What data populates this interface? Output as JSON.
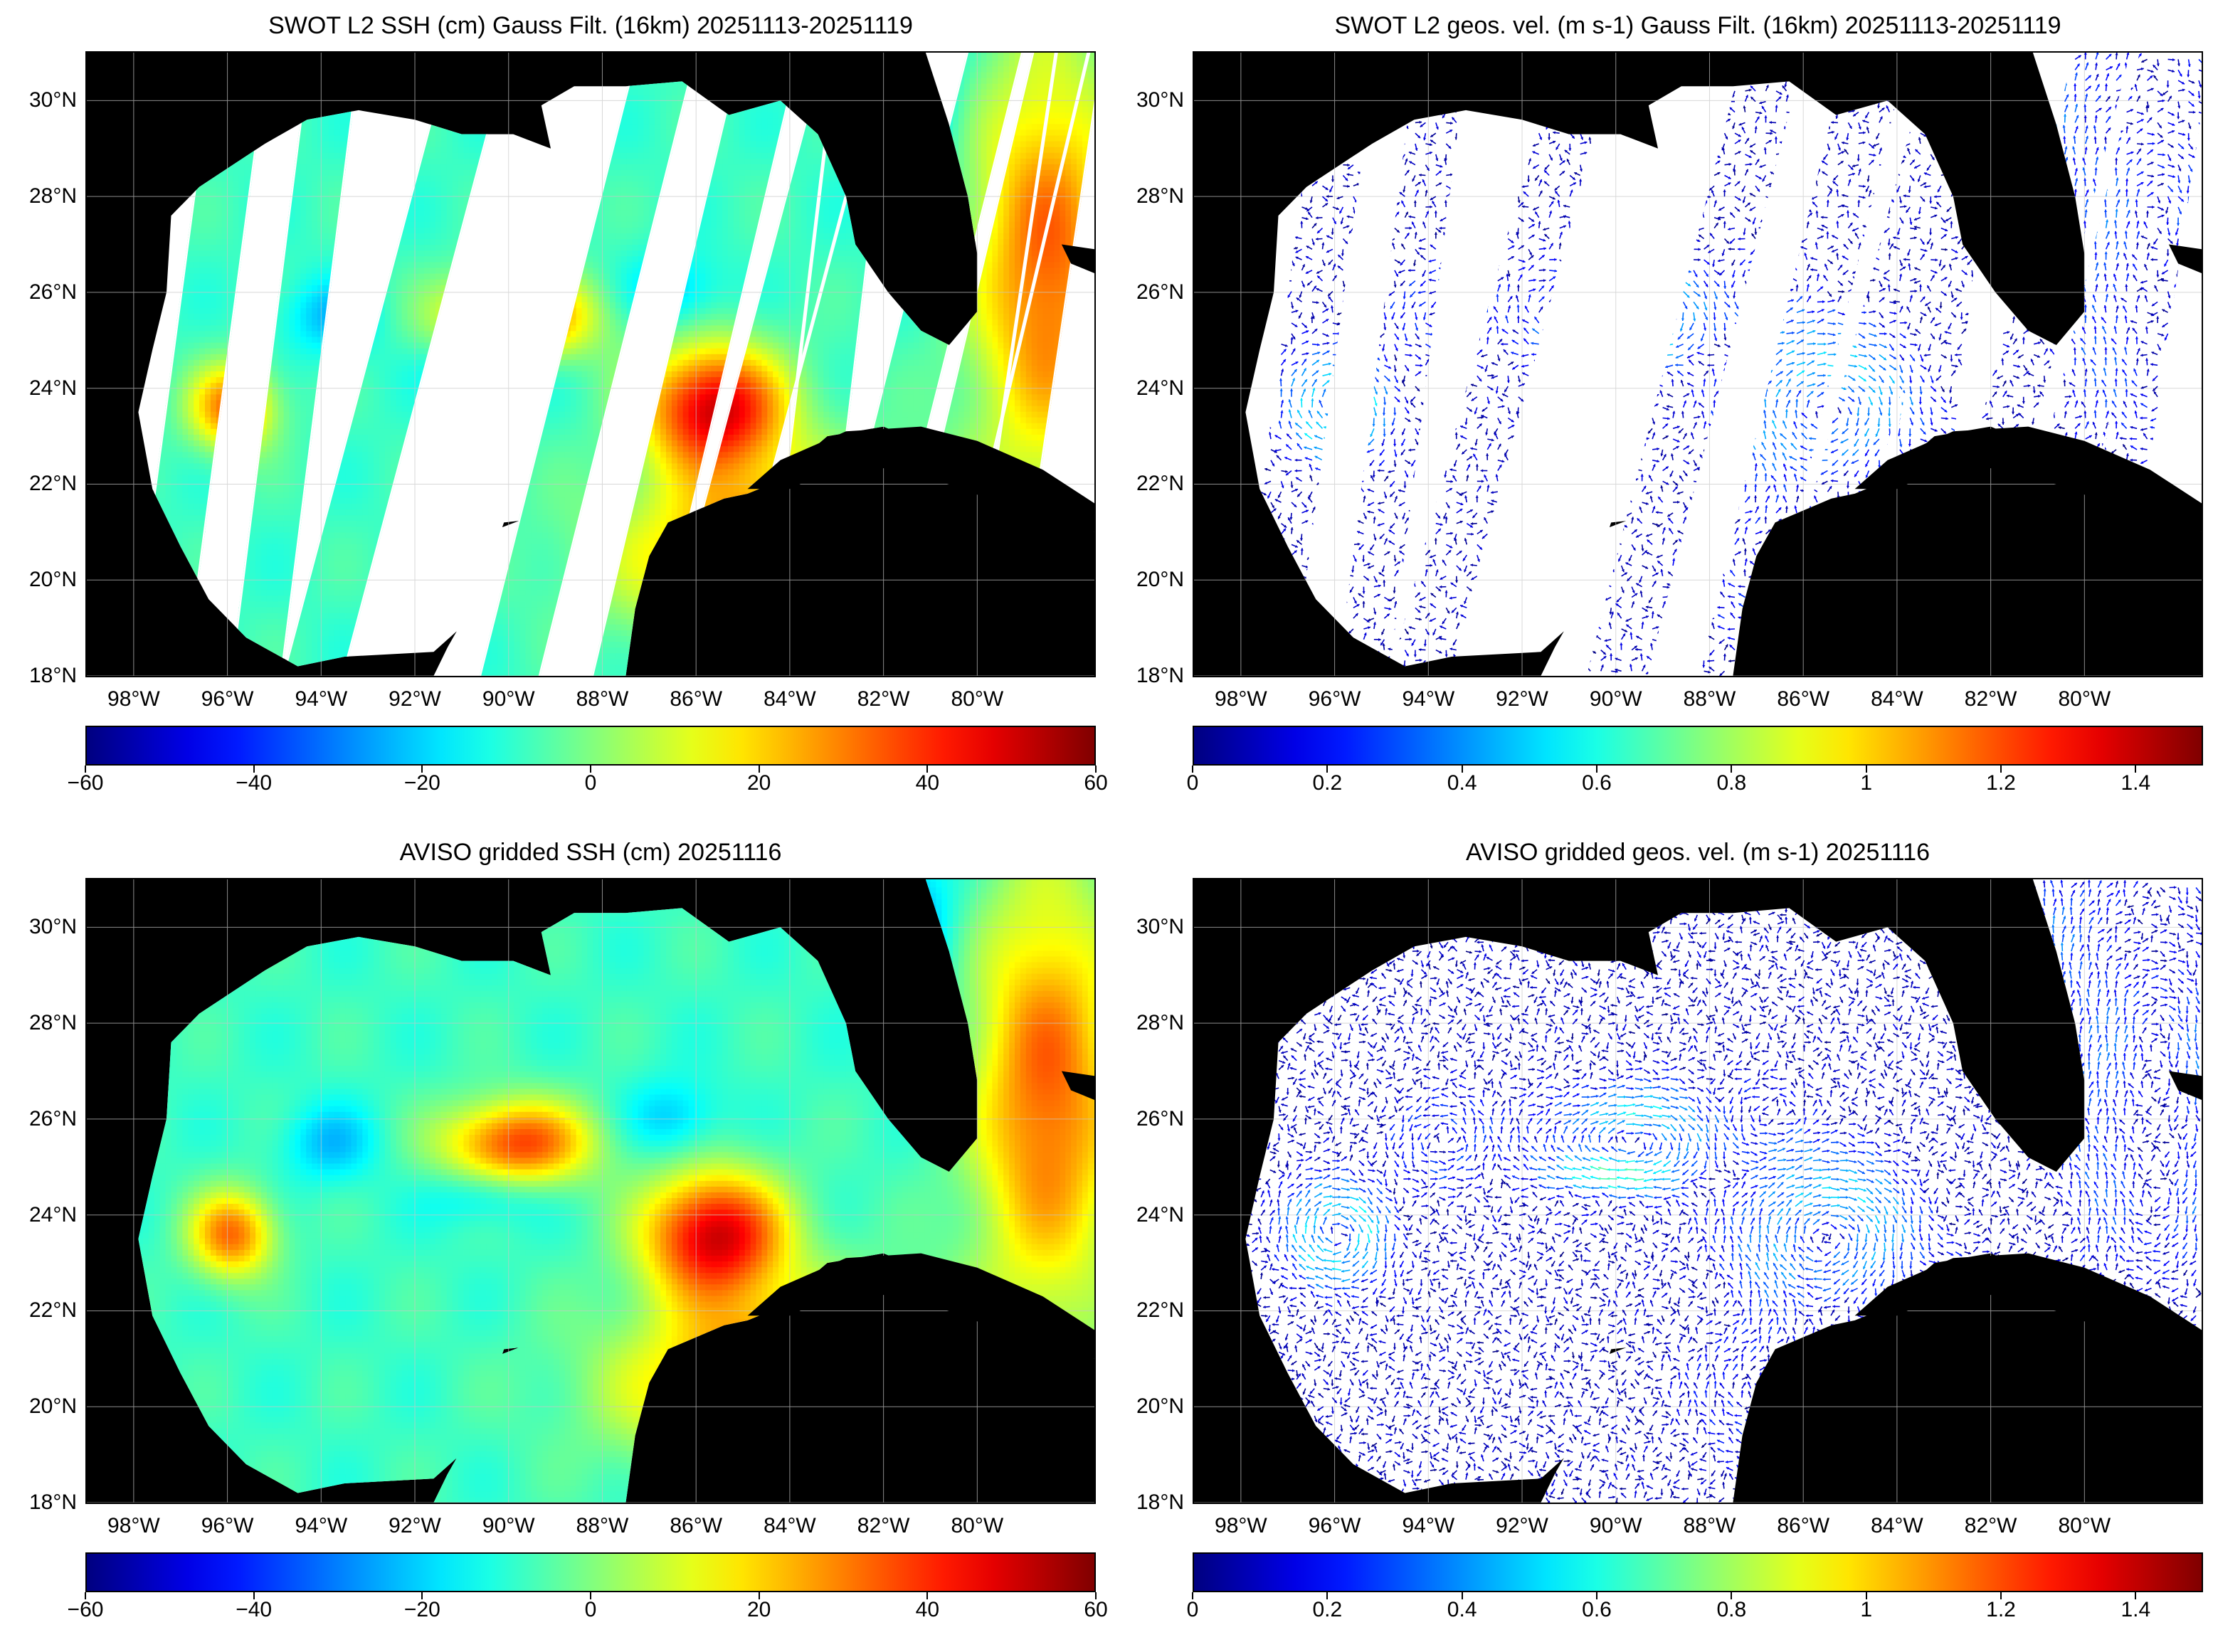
{
  "panels": [
    {
      "id": "swot-ssh",
      "title": "SWOT L2 SSH (cm) Gauss Filt. (16km) 20251113-20251119",
      "kind": "ssh-swaths",
      "colorbar": {
        "ticks": [
          "−60",
          "−40",
          "−20",
          "0",
          "20",
          "40",
          "60"
        ],
        "range": [
          -60,
          60
        ],
        "colormap": "jet"
      }
    },
    {
      "id": "swot-vel",
      "title": "SWOT L2 geos. vel. (m s-1) Gauss Filt. (16km) 20251113-20251119",
      "kind": "vel-swaths",
      "colorbar": {
        "ticks": [
          "0",
          "0.2",
          "0.4",
          "0.6",
          "0.8",
          "1",
          "1.2",
          "1.4"
        ],
        "range": [
          0,
          1.5
        ],
        "colormap": "jet"
      }
    },
    {
      "id": "aviso-ssh",
      "title": "AVISO gridded SSH (cm) 20251116",
      "kind": "ssh-grid",
      "colorbar": {
        "ticks": [
          "−60",
          "−40",
          "−20",
          "0",
          "20",
          "40",
          "60"
        ],
        "range": [
          -60,
          60
        ],
        "colormap": "jet"
      }
    },
    {
      "id": "aviso-vel",
      "title": "AVISO gridded geos. vel. (m s-1)  20251116",
      "kind": "vel-grid",
      "colorbar": {
        "ticks": [
          "0",
          "0.2",
          "0.4",
          "0.6",
          "0.8",
          "1",
          "1.2",
          "1.4"
        ],
        "range": [
          0,
          1.5
        ],
        "colormap": "jet"
      }
    }
  ],
  "axes": {
    "lat_ticks": [
      "18°N",
      "20°N",
      "22°N",
      "24°N",
      "26°N",
      "28°N",
      "30°N"
    ],
    "lat_values": [
      18,
      20,
      22,
      24,
      26,
      28,
      30
    ],
    "lon_ticks": [
      "98°W",
      "96°W",
      "94°W",
      "92°W",
      "90°W",
      "88°W",
      "86°W",
      "84°W",
      "82°W",
      "80°W"
    ],
    "lon_values": [
      -98,
      -96,
      -94,
      -92,
      -90,
      -88,
      -86,
      -84,
      -82,
      -80
    ],
    "lon_range": [
      -99,
      -77.5
    ],
    "lat_range": [
      18,
      31
    ]
  },
  "chart_data": [
    {
      "type": "heatmap",
      "title": "SWOT L2 SSH (cm) Gauss Filt. (16km) 20251113-20251119",
      "xlim": [
        -99,
        -77.5
      ],
      "ylim": [
        18,
        31
      ],
      "colorbar_range": [
        -60,
        60
      ],
      "colormap": "jet",
      "coverage": "swaths"
    },
    {
      "type": "heatmap",
      "title": "SWOT L2 geos. vel. (m s-1) Gauss Filt. (16km) 20251113-20251119",
      "xlim": [
        -99,
        -77.5
      ],
      "ylim": [
        18,
        31
      ],
      "colorbar_range": [
        0,
        1.5
      ],
      "colormap": "jet",
      "coverage": "swaths",
      "marks": "vectors"
    },
    {
      "type": "heatmap",
      "title": "AVISO gridded SSH (cm) 20251116",
      "xlim": [
        -99,
        -77.5
      ],
      "ylim": [
        18,
        31
      ],
      "colorbar_range": [
        -60,
        60
      ],
      "colormap": "jet"
    },
    {
      "type": "heatmap",
      "title": "AVISO gridded geos. vel. (m s-1)  20251116",
      "xlim": [
        -99,
        -77.5
      ],
      "ylim": [
        18,
        31
      ],
      "colorbar_range": [
        0,
        1.5
      ],
      "colormap": "jet",
      "marks": "vectors"
    }
  ],
  "colors": {
    "land": "#000000",
    "ocean_nodata": "#ffffff",
    "grid": "#c8c8c8"
  }
}
